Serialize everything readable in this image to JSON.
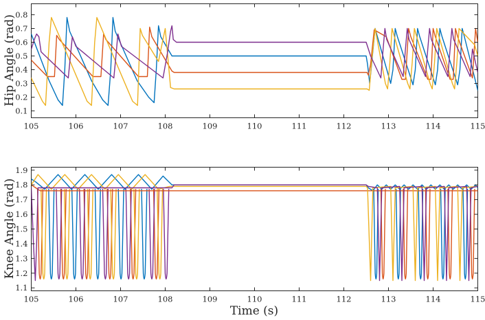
{
  "chart_data": [
    {
      "type": "line",
      "title": "",
      "xlabel": "",
      "ylabel": "Hip Angle (rad)",
      "xlim": [
        105,
        115
      ],
      "ylim": [
        0.05,
        0.88
      ],
      "x_ticks": [
        "105",
        "106",
        "107",
        "108",
        "109",
        "110",
        "111",
        "112",
        "113",
        "114",
        "115"
      ],
      "y_ticks": [
        "0.1",
        "0.2",
        "0.3",
        "0.4",
        "0.5",
        "0.6",
        "0.7",
        "0.8"
      ],
      "grid": false,
      "series": [
        {
          "color": "#0072BD",
          "x": [
            105.0,
            105.4,
            105.6,
            105.7,
            105.75,
            105.8,
            105.86,
            106.35,
            106.6,
            106.72,
            106.78,
            106.83,
            106.88,
            107.37,
            107.63,
            107.75,
            107.8,
            107.85,
            107.9,
            108.15,
            108.2,
            108.3,
            112.5,
            112.53,
            112.58,
            112.64,
            112.7,
            112.98,
            113.05,
            113.1,
            113.15,
            113.2,
            113.48,
            113.55,
            113.6,
            113.65,
            113.7,
            113.98,
            114.05,
            114.1,
            114.15,
            114.2,
            114.48,
            114.55,
            114.6,
            114.65,
            114.7,
            115.0
          ],
          "values": [
            0.66,
            0.32,
            0.18,
            0.14,
            0.4,
            0.78,
            0.68,
            0.32,
            0.18,
            0.14,
            0.4,
            0.78,
            0.68,
            0.32,
            0.2,
            0.16,
            0.4,
            0.72,
            0.64,
            0.5,
            0.5,
            0.5,
            0.5,
            0.44,
            0.3,
            0.5,
            0.7,
            0.38,
            0.3,
            0.4,
            0.7,
            0.64,
            0.36,
            0.29,
            0.4,
            0.7,
            0.64,
            0.36,
            0.29,
            0.4,
            0.7,
            0.64,
            0.36,
            0.29,
            0.4,
            0.7,
            0.64,
            0.25
          ]
        },
        {
          "color": "#D95319",
          "x": [
            105.0,
            105.36,
            105.52,
            105.57,
            105.63,
            106.38,
            106.56,
            106.62,
            106.67,
            107.4,
            107.6,
            107.65,
            107.7,
            108.15,
            108.2,
            108.3,
            112.5,
            112.52,
            112.55,
            112.6,
            112.68,
            112.95,
            113.3,
            113.38,
            113.45,
            113.5,
            113.88,
            113.95,
            114.0,
            114.05,
            114.38,
            114.45,
            114.5,
            114.55,
            114.88,
            114.95,
            115.0
          ],
          "values": [
            0.47,
            0.35,
            0.35,
            0.65,
            0.62,
            0.35,
            0.35,
            0.66,
            0.62,
            0.35,
            0.35,
            0.71,
            0.64,
            0.39,
            0.38,
            0.38,
            0.38,
            0.38,
            0.36,
            0.44,
            0.69,
            0.64,
            0.33,
            0.33,
            0.7,
            0.64,
            0.33,
            0.33,
            0.7,
            0.64,
            0.33,
            0.33,
            0.7,
            0.64,
            0.34,
            0.7,
            0.6
          ]
        },
        {
          "color": "#EDB120",
          "x": [
            105.0,
            105.25,
            105.32,
            105.4,
            105.45,
            106.25,
            106.35,
            106.42,
            106.47,
            107.27,
            107.38,
            107.44,
            107.49,
            107.85,
            108.0,
            108.12,
            108.2,
            108.3,
            112.5,
            112.52,
            112.57,
            112.62,
            112.7,
            112.93,
            112.98,
            113.03,
            113.08,
            113.43,
            113.48,
            113.53,
            113.58,
            113.93,
            113.98,
            114.03,
            114.08,
            114.43,
            114.48,
            114.53,
            114.58,
            114.93,
            115.0
          ],
          "values": [
            0.34,
            0.17,
            0.14,
            0.6,
            0.78,
            0.17,
            0.14,
            0.6,
            0.78,
            0.17,
            0.14,
            0.7,
            0.65,
            0.46,
            0.7,
            0.27,
            0.26,
            0.26,
            0.26,
            0.26,
            0.25,
            0.45,
            0.7,
            0.3,
            0.26,
            0.45,
            0.7,
            0.3,
            0.26,
            0.45,
            0.7,
            0.3,
            0.26,
            0.45,
            0.7,
            0.3,
            0.26,
            0.45,
            0.7,
            0.58,
            0.5
          ]
        },
        {
          "color": "#7E2F8E",
          "x": [
            105.0,
            105.08,
            105.12,
            105.17,
            105.22,
            105.83,
            105.87,
            105.92,
            106.0,
            106.85,
            106.89,
            106.94,
            107.02,
            107.95,
            108.05,
            108.12,
            108.15,
            108.18,
            108.25,
            112.5,
            112.52,
            112.6,
            112.83,
            112.88,
            112.92,
            112.96,
            113.33,
            113.38,
            113.42,
            113.46,
            113.83,
            113.88,
            113.92,
            113.96,
            114.33,
            114.38,
            114.42,
            114.46,
            114.83,
            114.88,
            115.0
          ],
          "values": [
            0.55,
            0.63,
            0.66,
            0.64,
            0.53,
            0.34,
            0.48,
            0.64,
            0.57,
            0.34,
            0.48,
            0.66,
            0.57,
            0.34,
            0.52,
            0.68,
            0.72,
            0.62,
            0.6,
            0.6,
            0.58,
            0.5,
            0.34,
            0.55,
            0.7,
            0.62,
            0.35,
            0.55,
            0.7,
            0.62,
            0.35,
            0.55,
            0.7,
            0.62,
            0.35,
            0.55,
            0.7,
            0.62,
            0.35,
            0.55,
            0.38
          ]
        }
      ]
    },
    {
      "type": "line",
      "title": "",
      "xlabel": "Time (s)",
      "ylabel": "Knee Angle (rad)",
      "xlim": [
        105,
        115
      ],
      "ylim": [
        1.08,
        1.92
      ],
      "x_ticks": [
        "105",
        "106",
        "107",
        "108",
        "109",
        "110",
        "111",
        "112",
        "113",
        "114",
        "115"
      ],
      "y_ticks": [
        "1.1",
        "1.2",
        "1.3",
        "1.4",
        "1.5",
        "1.6",
        "1.7",
        "1.8",
        "1.9"
      ],
      "grid": false,
      "series": [
        {
          "color": "#0072BD",
          "x": [
            105.0,
            105.1,
            105.3,
            105.6,
            105.9,
            106.2,
            106.5,
            106.8,
            107.1,
            107.4,
            107.7,
            107.95,
            108.15,
            108.2,
            108.3,
            112.5,
            112.55,
            112.65,
            112.75,
            112.85,
            112.95,
            113.05,
            113.15,
            113.25,
            113.35,
            113.45,
            113.55,
            113.65,
            113.75,
            113.85,
            113.95,
            114.05,
            114.15,
            114.25,
            114.35,
            114.45,
            114.55,
            114.65,
            114.75,
            114.85,
            114.95,
            115.0
          ],
          "values": [
            1.84,
            1.82,
            1.77,
            1.87,
            1.77,
            1.87,
            1.77,
            1.87,
            1.77,
            1.87,
            1.77,
            1.86,
            1.8,
            1.8,
            1.8,
            1.8,
            1.78,
            1.76,
            1.8,
            1.77,
            1.8,
            1.77,
            1.8,
            1.77,
            1.8,
            1.77,
            1.8,
            1.77,
            1.8,
            1.77,
            1.8,
            1.77,
            1.8,
            1.77,
            1.8,
            1.77,
            1.8,
            1.77,
            1.8,
            1.77,
            1.8,
            1.78
          ]
        },
        {
          "color": "#D95319",
          "x": [
            105.0,
            105.1,
            105.2,
            105.3,
            108.15,
            108.2,
            108.3,
            112.5,
            112.55,
            112.65,
            112.75,
            112.85,
            112.95,
            113.05,
            113.15,
            113.25,
            113.35,
            113.45,
            113.55,
            113.65,
            113.75,
            113.85,
            113.95,
            114.05,
            114.15,
            114.25,
            114.35,
            114.45,
            114.55,
            114.65,
            114.75,
            114.85,
            114.95,
            115.0
          ],
          "values": [
            1.8,
            1.78,
            1.76,
            1.76,
            1.76,
            1.76,
            1.76,
            1.76,
            1.76,
            1.76,
            1.76,
            1.76,
            1.76,
            1.76,
            1.76,
            1.76,
            1.76,
            1.76,
            1.76,
            1.76,
            1.76,
            1.76,
            1.76,
            1.76,
            1.76,
            1.76,
            1.76,
            1.76,
            1.76,
            1.76,
            1.76,
            1.76,
            1.76,
            1.76
          ]
        },
        {
          "color": "#EDB120",
          "x": [
            105.0,
            105.15,
            105.45,
            105.75,
            106.05,
            106.35,
            106.65,
            106.95,
            107.25,
            107.55,
            107.85,
            108.1,
            108.2,
            108.3,
            112.5,
            112.53,
            112.6,
            112.65,
            113.05,
            113.1,
            113.15,
            113.55,
            113.6,
            113.65,
            114.05,
            114.1,
            114.15,
            114.55,
            114.6,
            114.65,
            115.0
          ],
          "values": [
            1.8,
            1.87,
            1.77,
            1.87,
            1.77,
            1.87,
            1.77,
            1.87,
            1.77,
            1.87,
            1.77,
            1.79,
            1.79,
            1.79,
            1.79,
            1.78,
            1.15,
            1.78,
            1.79,
            1.15,
            1.78,
            1.79,
            1.15,
            1.78,
            1.79,
            1.15,
            1.78,
            1.79,
            1.15,
            1.78,
            1.79
          ]
        },
        {
          "color": "#7E2F8E",
          "x": [
            105.0,
            105.05,
            105.09,
            105.12,
            105.15,
            105.2,
            108.15,
            108.2,
            108.3,
            112.5,
            112.55,
            112.75,
            112.8,
            112.85,
            113.25,
            113.3,
            113.35,
            113.75,
            113.8,
            113.85,
            114.25,
            114.3,
            114.35,
            114.75,
            114.8,
            114.85,
            115.0
          ],
          "values": [
            1.78,
            1.4,
            1.15,
            1.4,
            1.78,
            1.78,
            1.78,
            1.8,
            1.8,
            1.8,
            1.79,
            1.78,
            1.15,
            1.78,
            1.79,
            1.15,
            1.78,
            1.79,
            1.15,
            1.78,
            1.79,
            1.15,
            1.78,
            1.79,
            1.15,
            1.78,
            1.79
          ]
        }
      ],
      "spikes": [
        {
          "color": "#D95319",
          "x": [
            105.2,
            105.72,
            106.24,
            106.76,
            107.28,
            107.8
          ],
          "min": 1.15,
          "base": 1.77,
          "halfwidth": 0.06
        },
        {
          "color": "#EDB120",
          "x": [
            105.28,
            105.8,
            106.32,
            106.84,
            107.36,
            107.88
          ],
          "min": 1.15,
          "base": 1.77,
          "halfwidth": 0.06
        },
        {
          "color": "#0072BD",
          "x": [
            105.45,
            105.97,
            106.49,
            107.01,
            107.53
          ],
          "min": 1.15,
          "base": 1.77,
          "halfwidth": 0.06
        },
        {
          "color": "#7E2F8E",
          "x": [
            105.62,
            106.14,
            106.66,
            107.18,
            107.7,
            108.02
          ],
          "min": 1.15,
          "base": 1.77,
          "halfwidth": 0.06
        },
        {
          "color": "#D95319",
          "x": [
            112.88,
            113.38,
            113.88,
            114.38,
            114.88
          ],
          "min": 1.15,
          "base": 1.77,
          "halfwidth": 0.05
        },
        {
          "color": "#0072BD",
          "x": [
            112.72,
            113.22,
            113.72,
            114.22,
            114.72
          ],
          "min": 1.15,
          "base": 1.77,
          "halfwidth": 0.05
        }
      ]
    }
  ]
}
